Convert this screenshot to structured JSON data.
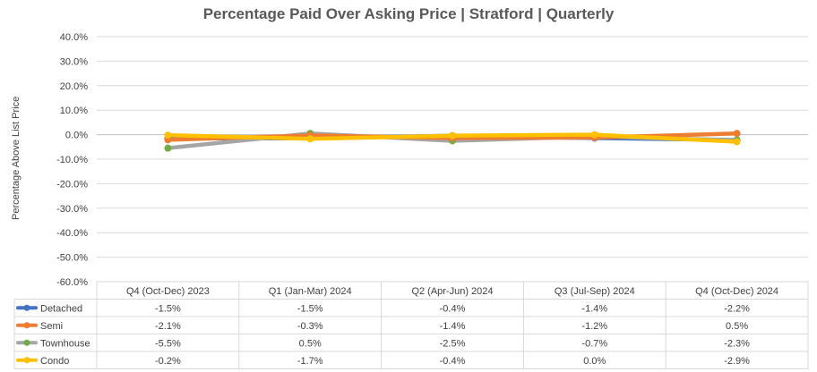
{
  "chart_data": {
    "type": "line",
    "title": "Percentage Paid Over Asking Price | Stratford |  Quarterly",
    "ylabel": "Percentage Above List Price",
    "xlabel": "",
    "ylim": [
      -60,
      40
    ],
    "yticks": [
      "40.0%",
      "30.0%",
      "20.0%",
      "10.0%",
      "0.0%",
      "-10.0%",
      "-20.0%",
      "-30.0%",
      "-40.0%",
      "-50.0%",
      "-60.0%"
    ],
    "grid": true,
    "legend": "data-table",
    "categories": [
      "Q4 (Oct-Dec) 2023",
      "Q1 (Jan-Mar) 2024",
      "Q2 (Apr-Jun) 2024",
      "Q3 (Jul-Sep) 2024",
      "Q4 (Oct-Dec) 2024"
    ],
    "series": [
      {
        "name": "Detached",
        "color": "#4472C4",
        "values": [
          -1.5,
          -1.5,
          -0.4,
          -1.4,
          -2.2
        ],
        "labels": [
          "-1.5%",
          "-1.5%",
          "-0.4%",
          "-1.4%",
          "-2.2%"
        ]
      },
      {
        "name": "Semi",
        "color": "#ED7D31",
        "values": [
          -2.1,
          -0.3,
          -1.4,
          -1.2,
          0.5
        ],
        "labels": [
          "-2.1%",
          "-0.3%",
          "-1.4%",
          "-1.2%",
          "0.5%"
        ]
      },
      {
        "name": "Townhouse",
        "color": "#A5A5A5",
        "marker": "#70AD47",
        "values": [
          -5.5,
          0.5,
          -2.5,
          -0.7,
          -2.3
        ],
        "labels": [
          "-5.5%",
          "0.5%",
          "-2.5%",
          "-0.7%",
          "-2.3%"
        ]
      },
      {
        "name": "Condo",
        "color": "#FFC000",
        "values": [
          -0.2,
          -1.7,
          -0.4,
          0.0,
          -2.9
        ],
        "labels": [
          "-0.2%",
          "-1.7%",
          "-0.4%",
          "0.0%",
          "-2.9%"
        ]
      }
    ]
  }
}
